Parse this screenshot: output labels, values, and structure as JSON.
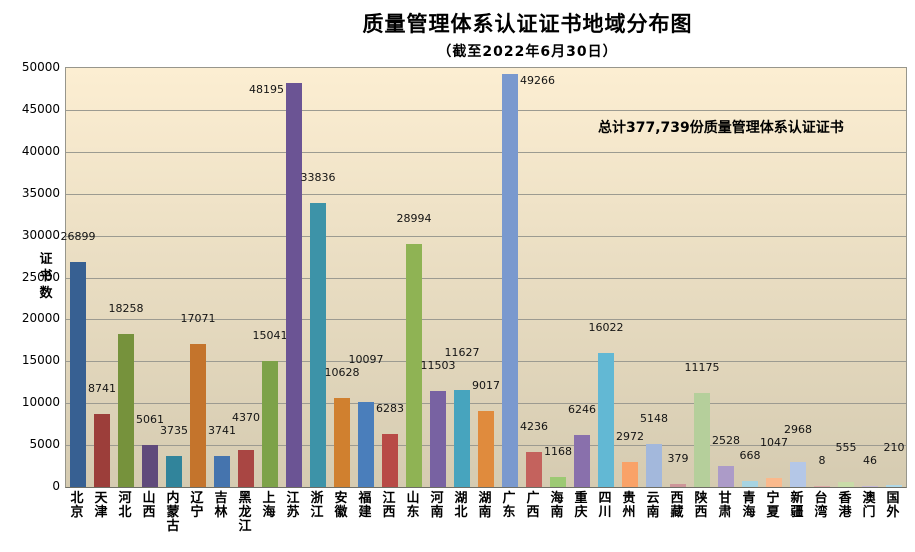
{
  "chart_data": {
    "type": "bar",
    "title": "质量管理体系认证证书地域分布图",
    "subtitle": "（截至2022年6月30日）",
    "annotation": "总计377,739份质量管理体系认证证书",
    "ylabel": "证书数",
    "xlabel": "",
    "ylim": [
      0,
      50000
    ],
    "ytick_step": 5000,
    "grid": true,
    "legend_position": "none",
    "data_labels": true,
    "categories": [
      "北京",
      "天津",
      "河北",
      "山西",
      "内蒙古",
      "辽宁",
      "吉林",
      "黑龙江",
      "上海",
      "江苏",
      "浙江",
      "安徽",
      "福建",
      "江西",
      "山东",
      "河南",
      "湖北",
      "湖南",
      "广东",
      "广西",
      "海南",
      "重庆",
      "四川",
      "贵州",
      "云南",
      "西藏",
      "陕西",
      "甘肃",
      "青海",
      "宁夏",
      "新疆",
      "台湾",
      "香港",
      "澳门",
      "国外"
    ],
    "values": [
      26899,
      8741,
      18258,
      5061,
      3735,
      17071,
      3741,
      4370,
      15041,
      48195,
      33836,
      10628,
      10097,
      6283,
      28994,
      11503,
      11627,
      9017,
      49266,
      4236,
      1168,
      6246,
      16022,
      2972,
      5148,
      379,
      11175,
      2528,
      668,
      1047,
      2968,
      8,
      555,
      46,
      210
    ],
    "bar_colors": [
      "#376092",
      "#9C3E3A",
      "#76923C",
      "#604A7B",
      "#31849B",
      "#C4742C",
      "#4574AE",
      "#A94643",
      "#7DA249",
      "#6B5494",
      "#3D93A8",
      "#D0802F",
      "#4A7EBB",
      "#B84A46",
      "#8FB354",
      "#7862A2",
      "#47A4BE",
      "#E08B3D",
      "#7A99CE",
      "#C4625D",
      "#9CC973",
      "#8970AC",
      "#62B8D4",
      "#F9A268",
      "#A3B8DC",
      "#CD9599",
      "#B5CF9B",
      "#AC9BC8",
      "#A6D3E2",
      "#FAB98C",
      "#B4C7E7",
      "#DCA9A7",
      "#C9DCA8",
      "#C5B8D8",
      "#AFD8E8"
    ],
    "plot_bg_top": "#FCEED2",
    "plot_bg_bottom": "#D5CBB1",
    "gridline_color": "#9C9B91",
    "text_color": "#000000"
  }
}
